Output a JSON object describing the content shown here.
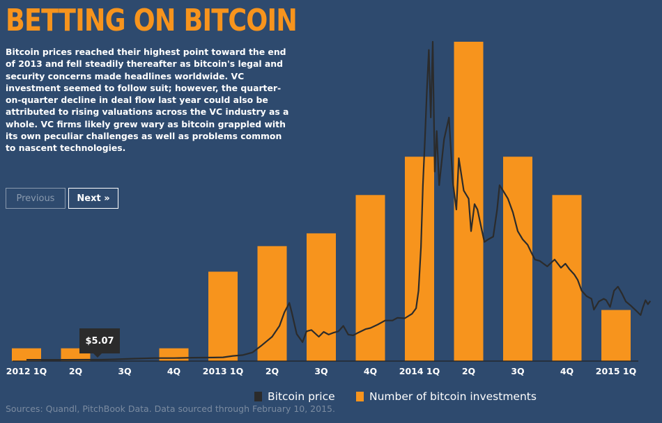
{
  "title": "BETTING ON BITCOIN",
  "description": "Bitcoin prices reached their highest point toward the end of 2013 and fell steadily thereafter as bitcoin's legal and security concerns made headlines worldwide. VC investment seemed to follow suit; however, the quarter-on-quarter decline in deal flow last year could also be attributed to rising valuations across the VC industry as a whole. VC firms likely grew wary as bitcoin grappled with its own peculiar challenges as well as problems common to nascent technologies.",
  "nav": {
    "previous_label": "Previous",
    "next_label": "Next »"
  },
  "tooltip": {
    "value": "$5.07"
  },
  "legend": {
    "price_label": "Bitcoin price",
    "investments_label": "Number of bitcoin investments"
  },
  "source": "Sources: Quandl, PitchBook Data. Data sourced through February 10, 2015.",
  "colors": {
    "background": "#2e4a6e",
    "bar": "#f7941d",
    "line": "#2b2b2b",
    "title": "#f7941d"
  },
  "chart_data": {
    "type": "bar+line",
    "categories": [
      "2012 1Q",
      "2Q",
      "3Q",
      "4Q",
      "2013 1Q",
      "2Q",
      "3Q",
      "4Q",
      "2014 1Q",
      "2Q",
      "3Q",
      "4Q",
      "2015 1Q"
    ],
    "series": [
      {
        "name": "Number of bitcoin investments",
        "type": "bar",
        "values": [
          1,
          1,
          0,
          1,
          7,
          9,
          10,
          13,
          16,
          25,
          16,
          13,
          4
        ]
      },
      {
        "name": "Bitcoin price",
        "type": "line",
        "points": [
          [
            0.0,
            5.0
          ],
          [
            0.4,
            4.9
          ],
          [
            0.8,
            5.0
          ],
          [
            1.2,
            5.1
          ],
          [
            1.5,
            5.07
          ],
          [
            1.8,
            6.5
          ],
          [
            2.2,
            9
          ],
          [
            2.6,
            11
          ],
          [
            3.0,
            11
          ],
          [
            3.4,
            12.5
          ],
          [
            3.8,
            13
          ],
          [
            4.0,
            14
          ],
          [
            4.2,
            19
          ],
          [
            4.4,
            22
          ],
          [
            4.6,
            32
          ],
          [
            4.8,
            60
          ],
          [
            5.0,
            90
          ],
          [
            5.15,
            130
          ],
          [
            5.25,
            180
          ],
          [
            5.35,
            215
          ],
          [
            5.4,
            180
          ],
          [
            5.5,
            100
          ],
          [
            5.62,
            70
          ],
          [
            5.7,
            110
          ],
          [
            5.8,
            115
          ],
          [
            5.95,
            90
          ],
          [
            6.05,
            108
          ],
          [
            6.15,
            98
          ],
          [
            6.25,
            105
          ],
          [
            6.35,
            110
          ],
          [
            6.45,
            130
          ],
          [
            6.55,
            98
          ],
          [
            6.65,
            95
          ],
          [
            6.75,
            105
          ],
          [
            6.9,
            118
          ],
          [
            7.0,
            122
          ],
          [
            7.15,
            135
          ],
          [
            7.3,
            150
          ],
          [
            7.45,
            150
          ],
          [
            7.55,
            160
          ],
          [
            7.7,
            158
          ],
          [
            7.85,
            175
          ],
          [
            7.93,
            195
          ],
          [
            7.98,
            260
          ],
          [
            8.03,
            420
          ],
          [
            8.07,
            650
          ],
          [
            8.11,
            820
          ],
          [
            8.15,
            1000
          ],
          [
            8.19,
            1150
          ],
          [
            8.23,
            900
          ],
          [
            8.27,
            1180
          ],
          [
            8.31,
            700
          ],
          [
            8.35,
            850
          ],
          [
            8.4,
            650
          ],
          [
            8.5,
            820
          ],
          [
            8.6,
            900
          ],
          [
            8.68,
            660
          ],
          [
            8.75,
            560
          ],
          [
            8.8,
            750
          ],
          [
            8.9,
            630
          ],
          [
            9.0,
            600
          ],
          [
            9.05,
            480
          ],
          [
            9.12,
            580
          ],
          [
            9.18,
            560
          ],
          [
            9.25,
            500
          ],
          [
            9.32,
            440
          ],
          [
            9.4,
            450
          ],
          [
            9.5,
            460
          ],
          [
            9.58,
            560
          ],
          [
            9.63,
            650
          ],
          [
            9.7,
            630
          ],
          [
            9.8,
            600
          ],
          [
            9.9,
            550
          ],
          [
            10.0,
            480
          ],
          [
            10.1,
            450
          ],
          [
            10.2,
            430
          ],
          [
            10.28,
            400
          ],
          [
            10.35,
            375
          ],
          [
            10.45,
            370
          ],
          [
            10.6,
            350
          ],
          [
            10.75,
            375
          ],
          [
            10.88,
            345
          ],
          [
            10.97,
            360
          ],
          [
            11.05,
            340
          ],
          [
            11.15,
            320
          ],
          [
            11.22,
            300
          ],
          [
            11.3,
            260
          ],
          [
            11.4,
            240
          ],
          [
            11.5,
            230
          ],
          [
            11.55,
            190
          ],
          [
            11.65,
            220
          ],
          [
            11.75,
            230
          ],
          [
            11.8,
            225
          ],
          [
            11.88,
            200
          ],
          [
            11.96,
            260
          ],
          [
            12.04,
            275
          ],
          [
            12.12,
            250
          ],
          [
            12.2,
            220
          ],
          [
            12.3,
            205
          ],
          [
            12.4,
            188
          ],
          [
            12.5,
            170
          ],
          [
            12.55,
            200
          ],
          [
            12.6,
            225
          ],
          [
            12.65,
            210
          ],
          [
            12.7,
            222
          ]
        ]
      }
    ],
    "ylim_bars": [
      0,
      25
    ],
    "ylim_price": [
      0,
      1180
    ],
    "legend_position": "bottom",
    "grid": false
  }
}
